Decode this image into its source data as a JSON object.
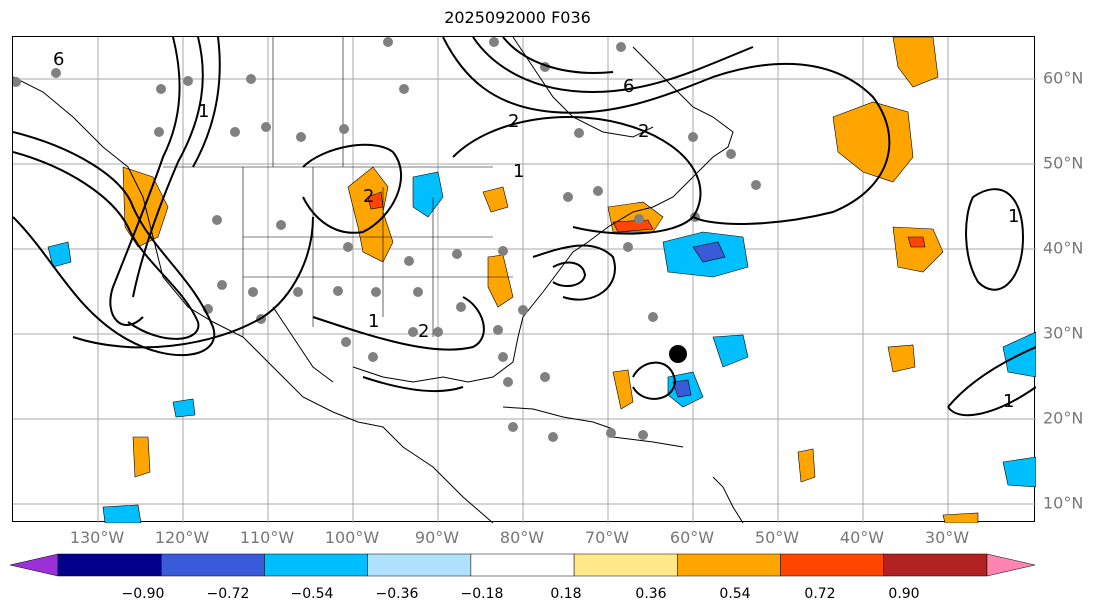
{
  "title": "2025092000 F036",
  "lon_labels": [
    "130°W",
    "120°W",
    "110°W",
    "100°W",
    "90°W",
    "80°W",
    "70°W",
    "60°W",
    "50°W",
    "40°W",
    "30°W"
  ],
  "lat_labels": [
    "60°N",
    "50°N",
    "40°N",
    "30°N",
    "20°N",
    "10°N"
  ],
  "colorbar": {
    "ticks": [
      "−0.90",
      "−0.72",
      "−0.54",
      "−0.36",
      "−0.18",
      "0.18",
      "0.36",
      "0.54",
      "0.72",
      "0.90"
    ],
    "colors": [
      "#9b30d9",
      "#00008b",
      "#3a5bd9",
      "#00bfff",
      "#b0e2ff",
      "#ffffff",
      "#ffe98a",
      "#ffa500",
      "#ff4500",
      "#b22222",
      "#ff85b0"
    ]
  },
  "contour_labels": [
    "6",
    "2",
    "1",
    "1",
    "2",
    "6",
    "2",
    "1",
    "1",
    "1",
    "2"
  ],
  "colors": {
    "positive": "#ffa500",
    "negative": "#00bfff",
    "contour": "#000000",
    "station": "#808080"
  }
}
